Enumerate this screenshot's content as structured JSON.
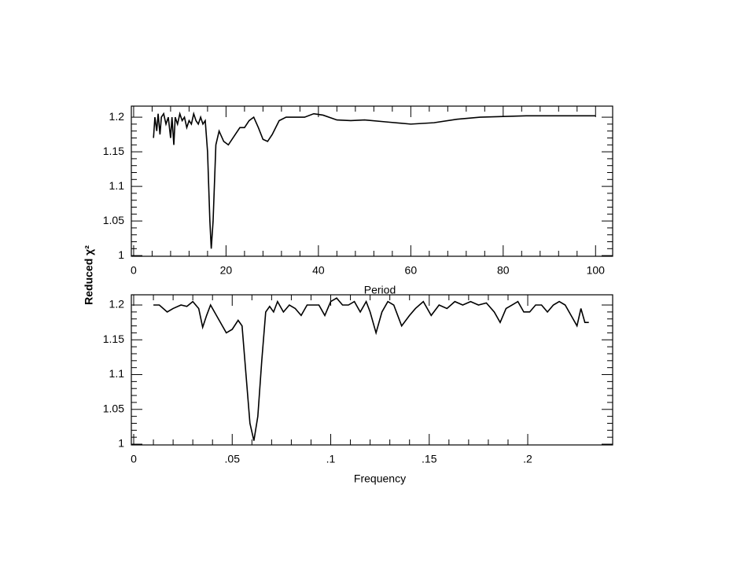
{
  "chart_data": [
    {
      "type": "line",
      "xlabel": "Period",
      "ylabel": "Reduced χ²",
      "color": "#000000",
      "xlim": [
        -0.5,
        103.7
      ],
      "ylim": [
        0.999,
        1.216
      ],
      "xticks": [
        0,
        20,
        40,
        60,
        80,
        100
      ],
      "yticks": [
        1,
        1.05,
        1.1,
        1.15,
        1.2
      ],
      "x": [
        4.3,
        4.6,
        5,
        5.3,
        5.7,
        6,
        6.5,
        7,
        7.5,
        8,
        8.3,
        8.7,
        9,
        9.5,
        10,
        10.5,
        11,
        11.5,
        12,
        12.5,
        13,
        13.5,
        14,
        14.5,
        15,
        15.5,
        16,
        16.5,
        16.8,
        17.2,
        17.8,
        18.5,
        19.5,
        20.5,
        22,
        23,
        24,
        25,
        26,
        27,
        28,
        29,
        30,
        31.5,
        33,
        35,
        37,
        39,
        41,
        44,
        47,
        50,
        55,
        60,
        65,
        70,
        75,
        80,
        85,
        90,
        95,
        100
      ],
      "values": [
        1.17,
        1.2,
        1.18,
        1.205,
        1.175,
        1.2,
        1.205,
        1.19,
        1.2,
        1.17,
        1.2,
        1.16,
        1.2,
        1.19,
        1.205,
        1.195,
        1.2,
        1.185,
        1.195,
        1.19,
        1.205,
        1.195,
        1.19,
        1.2,
        1.19,
        1.195,
        1.15,
        1.05,
        1.01,
        1.05,
        1.16,
        1.18,
        1.165,
        1.16,
        1.175,
        1.185,
        1.185,
        1.195,
        1.2,
        1.185,
        1.168,
        1.165,
        1.175,
        1.195,
        1.2,
        1.2,
        1.2,
        1.205,
        1.203,
        1.196,
        1.195,
        1.196,
        1.193,
        1.19,
        1.192,
        1.197,
        1.2,
        1.201,
        1.202,
        1.202,
        1.202,
        1.202
      ]
    },
    {
      "type": "line",
      "xlabel": "Frequency",
      "color": "#000000",
      "xlim": [
        -0.0012,
        0.2431
      ],
      "ylim": [
        0.9989,
        1.2147
      ],
      "xticks": [
        0,
        {
          "value": 0.05,
          "label": ".05"
        },
        {
          "value": 0.1,
          "label": ".1"
        },
        {
          "value": 0.15,
          "label": ".15"
        },
        {
          "value": 0.2,
          "label": ".2"
        }
      ],
      "yticks": [
        1,
        1.05,
        1.1,
        1.15,
        1.2
      ],
      "x": [
        0.01,
        0.013,
        0.017,
        0.02,
        0.024,
        0.027,
        0.03,
        0.033,
        0.035,
        0.037,
        0.039,
        0.041,
        0.044,
        0.047,
        0.05,
        0.053,
        0.055,
        0.057,
        0.059,
        0.061,
        0.063,
        0.065,
        0.067,
        0.069,
        0.071,
        0.073,
        0.076,
        0.079,
        0.082,
        0.085,
        0.088,
        0.091,
        0.094,
        0.097,
        0.1,
        0.103,
        0.106,
        0.109,
        0.112,
        0.115,
        0.118,
        0.12,
        0.123,
        0.126,
        0.129,
        0.132,
        0.136,
        0.14,
        0.143,
        0.147,
        0.151,
        0.155,
        0.159,
        0.163,
        0.167,
        0.171,
        0.175,
        0.179,
        0.183,
        0.186,
        0.189,
        0.192,
        0.195,
        0.198,
        0.201,
        0.204,
        0.207,
        0.21,
        0.213,
        0.216,
        0.219,
        0.222,
        0.225,
        0.227,
        0.229,
        0.231
      ],
      "values": [
        1.2,
        1.2,
        1.19,
        1.195,
        1.2,
        1.198,
        1.205,
        1.195,
        1.168,
        1.185,
        1.2,
        1.19,
        1.175,
        1.16,
        1.165,
        1.178,
        1.17,
        1.1,
        1.03,
        1.005,
        1.04,
        1.12,
        1.19,
        1.198,
        1.19,
        1.205,
        1.19,
        1.2,
        1.195,
        1.185,
        1.2,
        1.2,
        1.2,
        1.185,
        1.205,
        1.21,
        1.2,
        1.2,
        1.205,
        1.19,
        1.205,
        1.19,
        1.16,
        1.19,
        1.205,
        1.2,
        1.17,
        1.185,
        1.195,
        1.205,
        1.185,
        1.2,
        1.195,
        1.205,
        1.2,
        1.205,
        1.2,
        1.203,
        1.19,
        1.175,
        1.195,
        1.2,
        1.205,
        1.19,
        1.19,
        1.2,
        1.2,
        1.19,
        1.2,
        1.205,
        1.2,
        1.185,
        1.17,
        1.195,
        1.175,
        1.175
      ]
    }
  ]
}
